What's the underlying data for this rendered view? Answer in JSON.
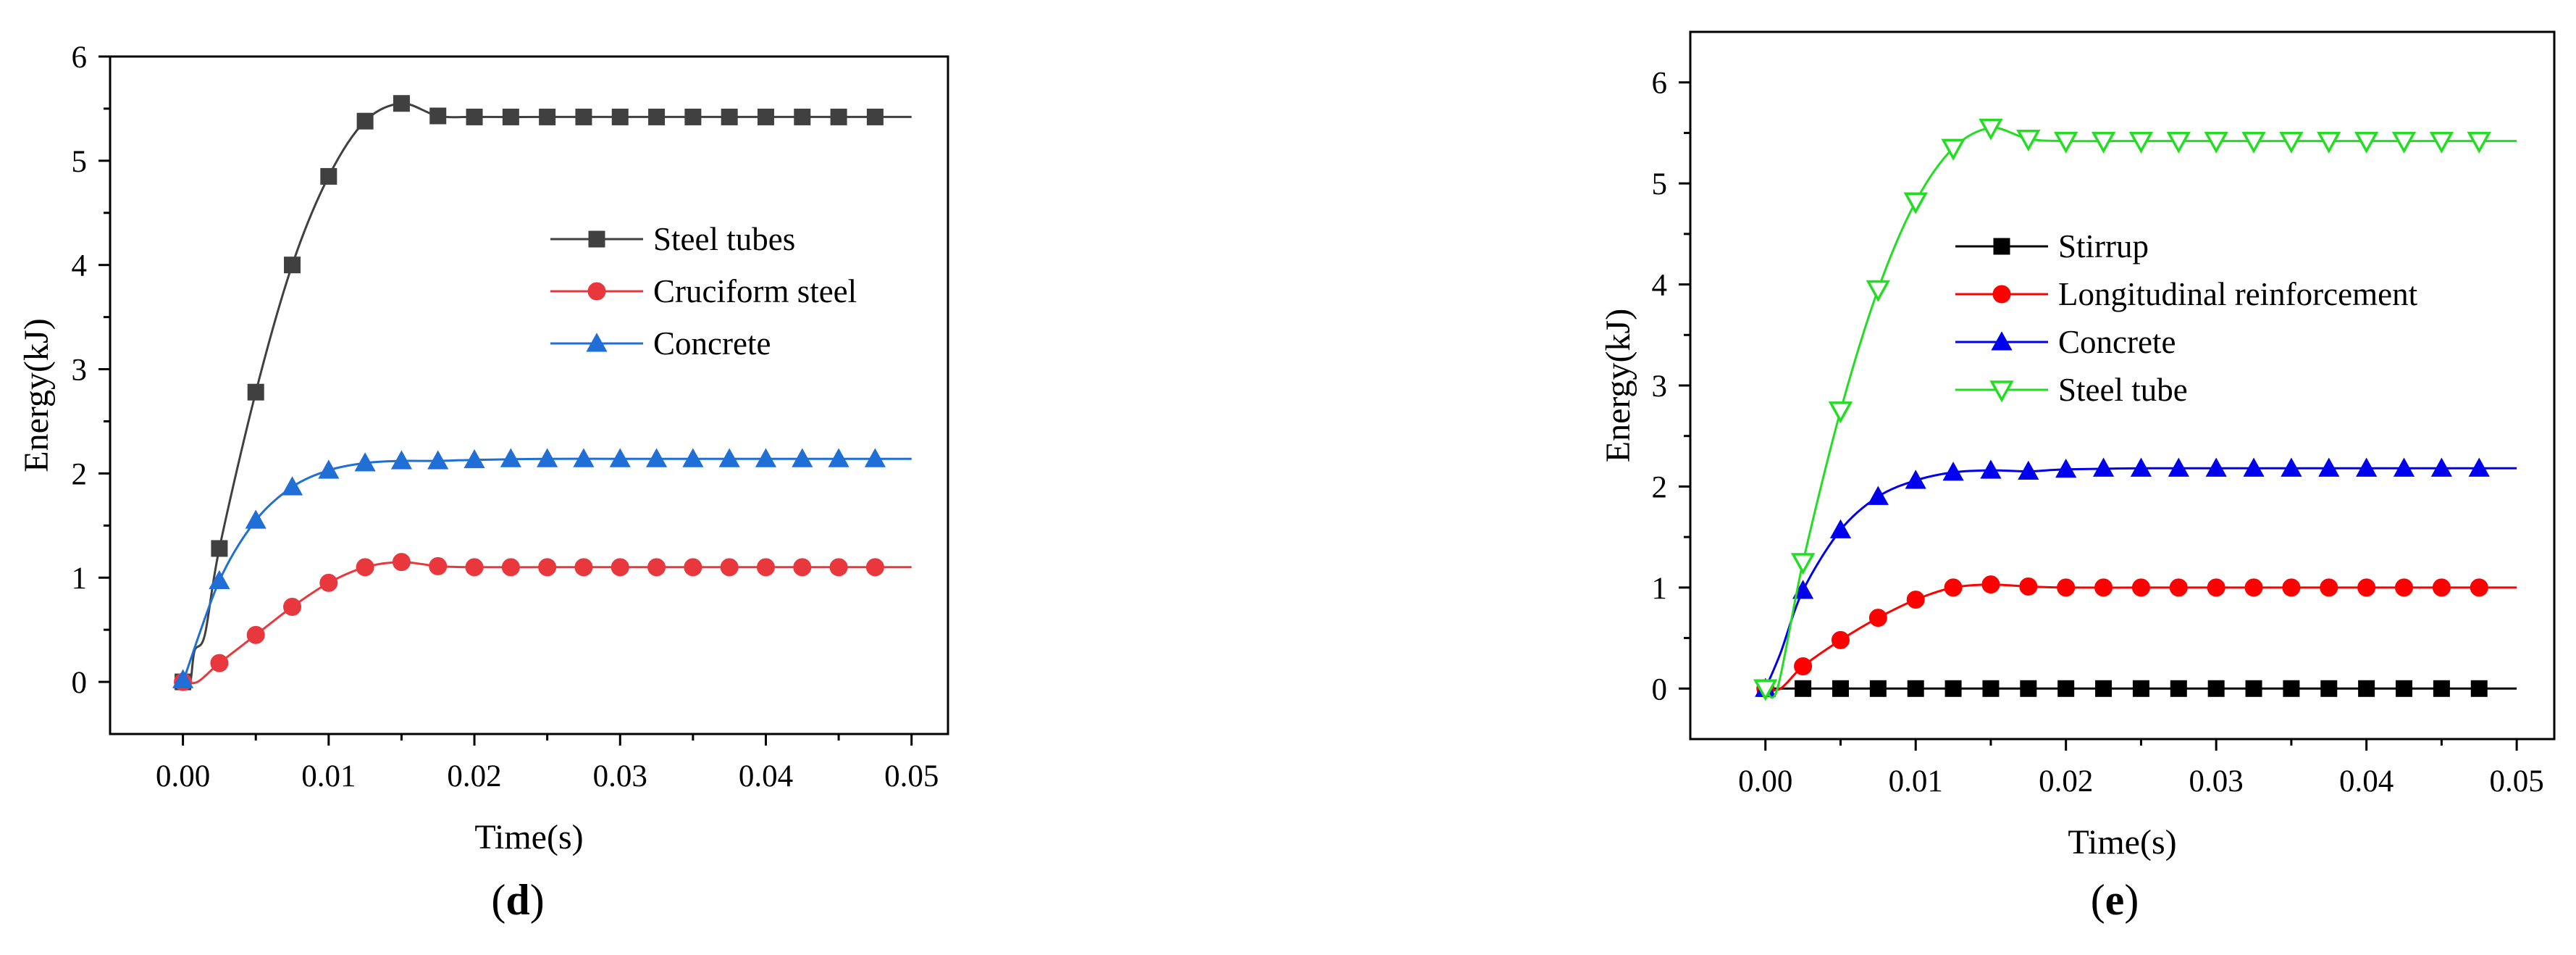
{
  "chart_data": [
    {
      "type": "line",
      "panel_label": "d",
      "title": "",
      "xlabel": "Time(s)",
      "ylabel": "Energy(kJ)",
      "xlim": [
        -0.005,
        0.0525
      ],
      "ylim": [
        -0.5,
        6
      ],
      "xticks": [
        0.0,
        0.01,
        0.02,
        0.03,
        0.04,
        0.05
      ],
      "xtick_labels": [
        "0.00",
        "0.01",
        "0.02",
        "0.03",
        "0.04",
        "0.05"
      ],
      "yticks": [
        0,
        1,
        2,
        3,
        4,
        5,
        6
      ],
      "ytick_labels": [
        "0",
        "1",
        "2",
        "3",
        "4",
        "5",
        "6"
      ],
      "grid": false,
      "legend_position": "center-right",
      "series": [
        {
          "name": "Steel tubes",
          "color": "#404040",
          "marker": "square",
          "line": [
            [
              0.0,
              0.0
            ],
            [
              0.0005,
              0.0
            ],
            [
              0.0008,
              0.3
            ],
            [
              0.0015,
              0.45
            ],
            [
              0.0025,
              1.28
            ],
            [
              0.005,
              2.78
            ],
            [
              0.0075,
              4.0
            ],
            [
              0.01,
              4.85
            ],
            [
              0.0125,
              5.38
            ],
            [
              0.015,
              5.55
            ],
            [
              0.0175,
              5.43
            ],
            [
              0.02,
              5.42
            ],
            [
              0.025,
              5.42
            ],
            [
              0.03,
              5.42
            ],
            [
              0.035,
              5.42
            ],
            [
              0.04,
              5.42
            ],
            [
              0.045,
              5.42
            ],
            [
              0.05,
              5.42
            ]
          ],
          "markers": [
            [
              0.0,
              0.0
            ],
            [
              0.0025,
              1.28
            ],
            [
              0.005,
              2.78
            ],
            [
              0.0075,
              4.0
            ],
            [
              0.01,
              4.85
            ],
            [
              0.0125,
              5.38
            ],
            [
              0.015,
              5.55
            ],
            [
              0.0175,
              5.43
            ],
            [
              0.02,
              5.42
            ],
            [
              0.0225,
              5.42
            ],
            [
              0.025,
              5.42
            ],
            [
              0.0275,
              5.42
            ],
            [
              0.03,
              5.42
            ],
            [
              0.0325,
              5.42
            ],
            [
              0.035,
              5.42
            ],
            [
              0.0375,
              5.42
            ],
            [
              0.04,
              5.42
            ],
            [
              0.0425,
              5.42
            ],
            [
              0.045,
              5.42
            ],
            [
              0.0475,
              5.42
            ]
          ]
        },
        {
          "name": "Cruciform steel",
          "color": "#e8383d",
          "marker": "circle",
          "line": [
            [
              0.0,
              0.0
            ],
            [
              0.001,
              0.0
            ],
            [
              0.0025,
              0.18
            ],
            [
              0.005,
              0.45
            ],
            [
              0.0075,
              0.72
            ],
            [
              0.01,
              0.95
            ],
            [
              0.0125,
              1.1
            ],
            [
              0.015,
              1.15
            ],
            [
              0.0175,
              1.11
            ],
            [
              0.02,
              1.1
            ],
            [
              0.025,
              1.1
            ],
            [
              0.03,
              1.1
            ],
            [
              0.035,
              1.1
            ],
            [
              0.04,
              1.1
            ],
            [
              0.045,
              1.1
            ],
            [
              0.05,
              1.1
            ]
          ],
          "markers": [
            [
              0.0,
              0.0
            ],
            [
              0.0025,
              0.18
            ],
            [
              0.005,
              0.45
            ],
            [
              0.0075,
              0.72
            ],
            [
              0.01,
              0.95
            ],
            [
              0.0125,
              1.1
            ],
            [
              0.015,
              1.15
            ],
            [
              0.0175,
              1.11
            ],
            [
              0.02,
              1.1
            ],
            [
              0.0225,
              1.1
            ],
            [
              0.025,
              1.1
            ],
            [
              0.0275,
              1.1
            ],
            [
              0.03,
              1.1
            ],
            [
              0.0325,
              1.1
            ],
            [
              0.035,
              1.1
            ],
            [
              0.0375,
              1.1
            ],
            [
              0.04,
              1.1
            ],
            [
              0.0425,
              1.1
            ],
            [
              0.045,
              1.1
            ],
            [
              0.0475,
              1.1
            ]
          ]
        },
        {
          "name": "Concrete",
          "color": "#1f6fd6",
          "marker": "triangle",
          "line": [
            [
              0.0,
              0.0
            ],
            [
              0.0025,
              0.97
            ],
            [
              0.005,
              1.55
            ],
            [
              0.0075,
              1.87
            ],
            [
              0.01,
              2.03
            ],
            [
              0.0125,
              2.1
            ],
            [
              0.015,
              2.12
            ],
            [
              0.0175,
              2.12
            ],
            [
              0.02,
              2.13
            ],
            [
              0.025,
              2.14
            ],
            [
              0.03,
              2.14
            ],
            [
              0.035,
              2.14
            ],
            [
              0.04,
              2.14
            ],
            [
              0.045,
              2.14
            ],
            [
              0.05,
              2.14
            ]
          ],
          "markers": [
            [
              0.0,
              0.02
            ],
            [
              0.0025,
              0.97
            ],
            [
              0.005,
              1.55
            ],
            [
              0.0075,
              1.87
            ],
            [
              0.01,
              2.03
            ],
            [
              0.0125,
              2.1
            ],
            [
              0.015,
              2.12
            ],
            [
              0.0175,
              2.12
            ],
            [
              0.02,
              2.13
            ],
            [
              0.0225,
              2.14
            ],
            [
              0.025,
              2.14
            ],
            [
              0.0275,
              2.14
            ],
            [
              0.03,
              2.14
            ],
            [
              0.0325,
              2.14
            ],
            [
              0.035,
              2.14
            ],
            [
              0.0375,
              2.14
            ],
            [
              0.04,
              2.14
            ],
            [
              0.0425,
              2.14
            ],
            [
              0.045,
              2.14
            ],
            [
              0.0475,
              2.14
            ]
          ]
        }
      ]
    },
    {
      "type": "line",
      "panel_label": "e",
      "title": "",
      "xlabel": "Time(s)",
      "ylabel": "Energy(kJ)",
      "xlim": [
        -0.005,
        0.0525
      ],
      "ylim": [
        -0.5,
        6.5
      ],
      "xticks": [
        0.0,
        0.01,
        0.02,
        0.03,
        0.04,
        0.05
      ],
      "xtick_labels": [
        "0.00",
        "0.01",
        "0.02",
        "0.03",
        "0.04",
        "0.05"
      ],
      "yticks": [
        0,
        1,
        2,
        3,
        4,
        5,
        6
      ],
      "ytick_labels": [
        "0",
        "1",
        "2",
        "3",
        "4",
        "5",
        "6"
      ],
      "grid": false,
      "legend_position": "center-right",
      "series": [
        {
          "name": "Stirrup",
          "color": "#000000",
          "marker": "square",
          "line": [
            [
              0.0,
              0.0
            ],
            [
              0.05,
              0.0
            ]
          ],
          "markers": [
            [
              0.0,
              0.0
            ],
            [
              0.0025,
              0.0
            ],
            [
              0.005,
              0.0
            ],
            [
              0.0075,
              0.0
            ],
            [
              0.01,
              0.0
            ],
            [
              0.0125,
              0.0
            ],
            [
              0.015,
              0.0
            ],
            [
              0.0175,
              0.0
            ],
            [
              0.02,
              0.0
            ],
            [
              0.0225,
              0.0
            ],
            [
              0.025,
              0.0
            ],
            [
              0.0275,
              0.0
            ],
            [
              0.03,
              0.0
            ],
            [
              0.0325,
              0.0
            ],
            [
              0.035,
              0.0
            ],
            [
              0.0375,
              0.0
            ],
            [
              0.04,
              0.0
            ],
            [
              0.0425,
              0.0
            ],
            [
              0.045,
              0.0
            ],
            [
              0.0475,
              0.0
            ]
          ]
        },
        {
          "name": "Longitudinal reinforcement",
          "color": "#ff0000",
          "marker": "circle",
          "line": [
            [
              0.0,
              0.0
            ],
            [
              0.001,
              0.0
            ],
            [
              0.0025,
              0.22
            ],
            [
              0.005,
              0.48
            ],
            [
              0.0075,
              0.7
            ],
            [
              0.01,
              0.88
            ],
            [
              0.0125,
              1.0
            ],
            [
              0.015,
              1.03
            ],
            [
              0.0175,
              1.01
            ],
            [
              0.02,
              1.0
            ],
            [
              0.025,
              1.0
            ],
            [
              0.03,
              1.0
            ],
            [
              0.035,
              1.0
            ],
            [
              0.04,
              1.0
            ],
            [
              0.045,
              1.0
            ],
            [
              0.05,
              1.0
            ]
          ],
          "markers": [
            [
              0.0,
              0.0
            ],
            [
              0.0025,
              0.22
            ],
            [
              0.005,
              0.48
            ],
            [
              0.0075,
              0.7
            ],
            [
              0.01,
              0.88
            ],
            [
              0.0125,
              1.0
            ],
            [
              0.015,
              1.03
            ],
            [
              0.0175,
              1.01
            ],
            [
              0.02,
              1.0
            ],
            [
              0.0225,
              1.0
            ],
            [
              0.025,
              1.0
            ],
            [
              0.0275,
              1.0
            ],
            [
              0.03,
              1.0
            ],
            [
              0.0325,
              1.0
            ],
            [
              0.035,
              1.0
            ],
            [
              0.0375,
              1.0
            ],
            [
              0.04,
              1.0
            ],
            [
              0.0425,
              1.0
            ],
            [
              0.045,
              1.0
            ],
            [
              0.0475,
              1.0
            ]
          ]
        },
        {
          "name": "Concrete",
          "color": "#0000ee",
          "marker": "triangle",
          "line": [
            [
              0.0,
              0.0
            ],
            [
              0.001,
              0.35
            ],
            [
              0.0025,
              0.97
            ],
            [
              0.005,
              1.57
            ],
            [
              0.0075,
              1.9
            ],
            [
              0.01,
              2.06
            ],
            [
              0.0125,
              2.14
            ],
            [
              0.015,
              2.16
            ],
            [
              0.0175,
              2.15
            ],
            [
              0.02,
              2.17
            ],
            [
              0.025,
              2.18
            ],
            [
              0.03,
              2.18
            ],
            [
              0.035,
              2.18
            ],
            [
              0.04,
              2.18
            ],
            [
              0.045,
              2.18
            ],
            [
              0.05,
              2.18
            ]
          ],
          "markers": [
            [
              0.0,
              0.0
            ],
            [
              0.0025,
              0.97
            ],
            [
              0.005,
              1.57
            ],
            [
              0.0075,
              1.9
            ],
            [
              0.01,
              2.06
            ],
            [
              0.0125,
              2.14
            ],
            [
              0.015,
              2.16
            ],
            [
              0.0175,
              2.15
            ],
            [
              0.02,
              2.17
            ],
            [
              0.0225,
              2.18
            ],
            [
              0.025,
              2.18
            ],
            [
              0.0275,
              2.18
            ],
            [
              0.03,
              2.18
            ],
            [
              0.0325,
              2.18
            ],
            [
              0.035,
              2.18
            ],
            [
              0.0375,
              2.18
            ],
            [
              0.04,
              2.18
            ],
            [
              0.0425,
              2.18
            ],
            [
              0.045,
              2.18
            ],
            [
              0.0475,
              2.18
            ]
          ]
        },
        {
          "name": "Steel tube",
          "color": "#22dd22",
          "marker": "triangle-down-open",
          "line": [
            [
              0.0,
              0.0
            ],
            [
              0.0008,
              0.0
            ],
            [
              0.0025,
              1.25
            ],
            [
              0.005,
              2.75
            ],
            [
              0.0075,
              3.95
            ],
            [
              0.01,
              4.82
            ],
            [
              0.0125,
              5.35
            ],
            [
              0.015,
              5.55
            ],
            [
              0.0175,
              5.44
            ],
            [
              0.02,
              5.42
            ],
            [
              0.025,
              5.42
            ],
            [
              0.03,
              5.42
            ],
            [
              0.035,
              5.42
            ],
            [
              0.04,
              5.42
            ],
            [
              0.045,
              5.42
            ],
            [
              0.05,
              5.42
            ]
          ],
          "markers": [
            [
              0.0,
              0.0
            ],
            [
              0.0025,
              1.25
            ],
            [
              0.005,
              2.75
            ],
            [
              0.0075,
              3.95
            ],
            [
              0.01,
              4.82
            ],
            [
              0.0125,
              5.35
            ],
            [
              0.015,
              5.55
            ],
            [
              0.0175,
              5.44
            ],
            [
              0.02,
              5.42
            ],
            [
              0.0225,
              5.42
            ],
            [
              0.025,
              5.42
            ],
            [
              0.0275,
              5.42
            ],
            [
              0.03,
              5.42
            ],
            [
              0.0325,
              5.42
            ],
            [
              0.035,
              5.42
            ],
            [
              0.0375,
              5.42
            ],
            [
              0.04,
              5.42
            ],
            [
              0.0425,
              5.42
            ],
            [
              0.045,
              5.42
            ],
            [
              0.0475,
              5.42
            ]
          ]
        }
      ]
    }
  ]
}
